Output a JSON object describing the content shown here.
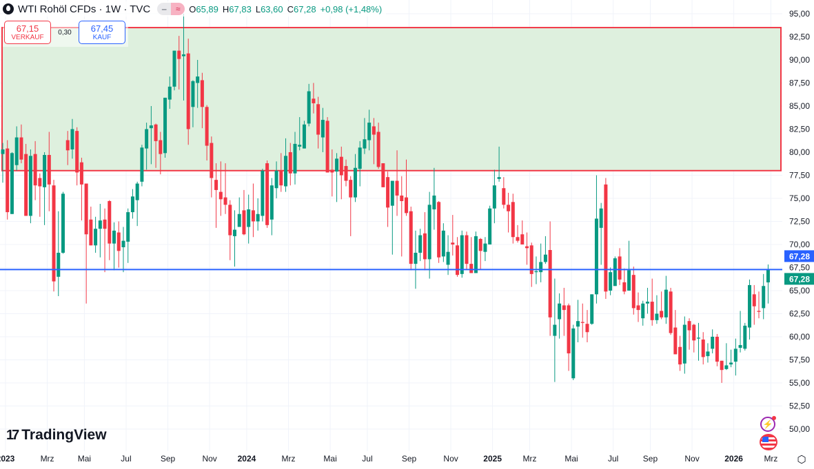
{
  "header": {
    "symbol_title": "WTI Rohöl CFDs · 1W · TVC",
    "icon": "oil-drop-icon",
    "btn_a": "‒",
    "btn_b": "≈",
    "o_label": "O",
    "o_value": "65,89",
    "h_label": "H",
    "h_value": "67,83",
    "l_label": "L",
    "l_value": "63,60",
    "c_label": "C",
    "c_value": "67,28",
    "change": "+0,98 (+1,48%)"
  },
  "trade": {
    "sell_price": "67,15",
    "sell_label": "VERKAUF",
    "spread": "0,30",
    "buy_price": "67,45",
    "buy_label": "KAUF"
  },
  "branding": {
    "logo_mark": "17",
    "logo_text": "TradingView"
  },
  "colors": {
    "up": "#089981",
    "down": "#f23645",
    "line": "#2962ff",
    "zone_fill": "#dcefdc",
    "zone_border": "#f23645"
  },
  "chart_data": {
    "type": "candlestick",
    "title": "WTI Rohöl CFDs · 1W · TVC",
    "ylim": [
      47.61,
      96.49
    ],
    "y_ticks": [
      "95,00",
      "92,50",
      "90,00",
      "87,50",
      "85,00",
      "82,50",
      "80,00",
      "77,50",
      "75,00",
      "72,50",
      "70,00",
      "67,50",
      "65,00",
      "62,50",
      "60,00",
      "57,50",
      "55,00",
      "52,50",
      "50,00"
    ],
    "y_tick_values": [
      95,
      92.5,
      90,
      87.5,
      85,
      82.5,
      80,
      77.5,
      75,
      72.5,
      70,
      67.5,
      65,
      62.5,
      60,
      57.5,
      55,
      52.5,
      50
    ],
    "x_ticks": [
      {
        "label": "2023",
        "index": 1,
        "bold": true
      },
      {
        "label": "Mrz",
        "index": 10
      },
      {
        "label": "Mai",
        "index": 18
      },
      {
        "label": "Jul",
        "index": 27
      },
      {
        "label": "Sep",
        "index": 36
      },
      {
        "label": "Nov",
        "index": 45
      },
      {
        "label": "2024",
        "index": 53,
        "bold": true
      },
      {
        "label": "Mrz",
        "index": 62
      },
      {
        "label": "Mai",
        "index": 71
      },
      {
        "label": "Jul",
        "index": 79
      },
      {
        "label": "Sep",
        "index": 88
      },
      {
        "label": "Nov",
        "index": 97
      },
      {
        "label": "2025",
        "index": 106,
        "bold": true
      },
      {
        "label": "Mrz",
        "index": 114
      },
      {
        "label": "Mai",
        "index": 123
      },
      {
        "label": "Jul",
        "index": 132
      },
      {
        "label": "Sep",
        "index": 140
      },
      {
        "label": "Nov",
        "index": 149
      },
      {
        "label": "2026",
        "index": 158,
        "bold": true
      },
      {
        "label": "Mrz",
        "index": 166
      }
    ],
    "zone": {
      "top": 93.5,
      "bottom": 78.0
    },
    "price_line": {
      "value": 67.28,
      "label_blue": "67,28",
      "label_green": "67,28"
    },
    "ohlc": [
      [
        79.8,
        81.0,
        76.7,
        80.3
      ],
      [
        80.4,
        81.3,
        72.7,
        73.5
      ],
      [
        73.3,
        80.0,
        73.3,
        79.9
      ],
      [
        78.6,
        82.8,
        78.0,
        81.6
      ],
      [
        81.6,
        83.0,
        78.8,
        79.2
      ],
      [
        79.8,
        80.9,
        73.1,
        73.1
      ],
      [
        73.1,
        80.3,
        72.3,
        79.6
      ],
      [
        79.8,
        81.2,
        74.8,
        76.4
      ],
      [
        77.2,
        77.7,
        73.0,
        76.3
      ],
      [
        76.2,
        80.0,
        72.1,
        79.7
      ],
      [
        79.7,
        82.2,
        73.6,
        76.5
      ],
      [
        76.4,
        77.0,
        64.9,
        66.0
      ],
      [
        66.5,
        73.6,
        64.4,
        69.1
      ],
      [
        69.1,
        75.7,
        69.0,
        75.5
      ],
      [
        81.3,
        82.3,
        78.6,
        80.2
      ],
      [
        80.3,
        83.6,
        79.3,
        82.5
      ],
      [
        82.3,
        82.7,
        76.4,
        77.8
      ],
      [
        78.9,
        79.4,
        72.6,
        76.5
      ],
      [
        76.6,
        76.6,
        63.6,
        71.1
      ],
      [
        72.7,
        74.1,
        69.9,
        69.9
      ],
      [
        69.9,
        73.0,
        69.1,
        71.7
      ],
      [
        71.7,
        74.4,
        68.6,
        72.6
      ],
      [
        72.7,
        73.9,
        67.0,
        71.7
      ],
      [
        74.7,
        74.8,
        68.3,
        70.1
      ],
      [
        70.1,
        72.4,
        67.2,
        71.5
      ],
      [
        71.3,
        72.5,
        67.5,
        69.3
      ],
      [
        69.7,
        71.9,
        67.0,
        70.4
      ],
      [
        70.3,
        73.9,
        68.0,
        73.5
      ],
      [
        73.5,
        76.0,
        72.8,
        75.2
      ],
      [
        74.8,
        76.8,
        72.0,
        76.6
      ],
      [
        76.8,
        80.8,
        76.3,
        80.5
      ],
      [
        80.4,
        83.2,
        78.1,
        82.5
      ],
      [
        82.6,
        85.0,
        78.7,
        82.9
      ],
      [
        83.0,
        83.1,
        78.3,
        81.2
      ],
      [
        81.3,
        82.2,
        77.6,
        79.8
      ],
      [
        79.9,
        85.9,
        79.4,
        85.9
      ],
      [
        85.7,
        88.2,
        84.7,
        87.1
      ],
      [
        87.1,
        91.0,
        86.7,
        91.0
      ],
      [
        91.0,
        92.6,
        86.8,
        90.1
      ],
      [
        90.4,
        95.0,
        85.6,
        90.6
      ],
      [
        90.7,
        92.3,
        80.8,
        82.5
      ],
      [
        84.9,
        87.8,
        82.7,
        87.7
      ],
      [
        87.5,
        90.0,
        84.8,
        88.2
      ],
      [
        87.8,
        88.6,
        82.6,
        84.9
      ],
      [
        84.9,
        85.1,
        79.1,
        80.7
      ],
      [
        81.0,
        81.7,
        75.1,
        77.2
      ],
      [
        77.0,
        78.8,
        71.8,
        75.9
      ],
      [
        75.7,
        79.0,
        73.1,
        74.9
      ],
      [
        75.1,
        78.8,
        73.3,
        74.3
      ],
      [
        74.3,
        74.8,
        68.3,
        71.0
      ],
      [
        70.9,
        73.7,
        67.6,
        71.6
      ],
      [
        71.9,
        75.1,
        71.9,
        73.3
      ],
      [
        73.7,
        75.9,
        71.0,
        71.1
      ],
      [
        71.9,
        75.4,
        70.1,
        73.8
      ],
      [
        73.7,
        76.6,
        70.8,
        72.5
      ],
      [
        72.5,
        75.0,
        71.5,
        73.3
      ],
      [
        73.1,
        78.2,
        72.5,
        78.0
      ],
      [
        78.8,
        79.1,
        71.8,
        72.1
      ],
      [
        72.7,
        77.2,
        71.0,
        76.4
      ],
      [
        76.1,
        79.0,
        75.0,
        78.0
      ],
      [
        78.0,
        79.9,
        75.7,
        76.4
      ],
      [
        76.3,
        81.5,
        75.7,
        79.6
      ],
      [
        80.0,
        81.0,
        76.4,
        77.7
      ],
      [
        77.7,
        82.2,
        76.5,
        80.9
      ],
      [
        80.6,
        83.8,
        80.2,
        80.8
      ],
      [
        80.4,
        83.4,
        80.4,
        83.0
      ],
      [
        83.1,
        87.4,
        82.8,
        86.6
      ],
      [
        85.8,
        87.5,
        84.2,
        85.3
      ],
      [
        85.2,
        86.0,
        80.4,
        81.9
      ],
      [
        81.6,
        84.8,
        80.0,
        83.5
      ],
      [
        83.4,
        83.8,
        77.8,
        77.8
      ],
      [
        78.1,
        80.3,
        75.2,
        77.8
      ],
      [
        77.9,
        79.9,
        74.6,
        79.3
      ],
      [
        79.5,
        80.6,
        74.9,
        77.5
      ],
      [
        78.5,
        79.2,
        76.3,
        76.9
      ],
      [
        77.0,
        77.4,
        70.9,
        75.1
      ],
      [
        75.1,
        79.8,
        74.6,
        78.3
      ],
      [
        78.2,
        81.2,
        76.3,
        80.5
      ],
      [
        80.4,
        83.7,
        79.8,
        81.4
      ],
      [
        81.3,
        84.6,
        80.2,
        83.2
      ],
      [
        82.8,
        83.7,
        78.7,
        81.9
      ],
      [
        82.2,
        83.2,
        78.2,
        78.4
      ],
      [
        78.8,
        78.8,
        76.2,
        76.2
      ],
      [
        77.3,
        77.9,
        71.9,
        74.0
      ],
      [
        74.2,
        76.9,
        68.9,
        76.9
      ],
      [
        76.9,
        80.2,
        73.1,
        75.3
      ],
      [
        75.3,
        77.4,
        68.7,
        74.7
      ],
      [
        75.1,
        79.2,
        73.1,
        73.4
      ],
      [
        73.6,
        74.1,
        67.2,
        67.9
      ],
      [
        67.9,
        71.5,
        65.2,
        69.1
      ],
      [
        69.1,
        71.7,
        68.2,
        71.0
      ],
      [
        71.2,
        73.5,
        67.2,
        68.4
      ],
      [
        68.4,
        75.7,
        66.3,
        74.3
      ],
      [
        73.8,
        78.3,
        71.6,
        75.3
      ],
      [
        74.6,
        74.7,
        68.0,
        68.6
      ],
      [
        68.7,
        72.3,
        68.1,
        71.5
      ],
      [
        67.8,
        71.0,
        66.7,
        69.2
      ],
      [
        70.2,
        73.2,
        68.8,
        70.0
      ],
      [
        69.9,
        70.8,
        66.5,
        66.7
      ],
      [
        66.8,
        71.5,
        66.4,
        71.0
      ],
      [
        71.0,
        71.4,
        67.3,
        67.9
      ],
      [
        67.9,
        70.8,
        66.9,
        66.9
      ],
      [
        66.9,
        71.4,
        66.9,
        70.9
      ],
      [
        70.6,
        70.7,
        67.3,
        69.3
      ],
      [
        69.2,
        70.8,
        68.2,
        70.1
      ],
      [
        70.0,
        74.2,
        70.0,
        73.9
      ],
      [
        73.9,
        78.1,
        72.3,
        76.4
      ],
      [
        77.1,
        80.6,
        76.8,
        77.3
      ],
      [
        76.1,
        77.3,
        73.9,
        74.3
      ],
      [
        74.3,
        75.6,
        71.3,
        73.6
      ],
      [
        74.6,
        75.5,
        70.1,
        70.8
      ],
      [
        70.8,
        72.1,
        70.2,
        70.4
      ],
      [
        71.1,
        72.6,
        70.0,
        70.0
      ],
      [
        69.8,
        71.3,
        67.8,
        69.6
      ],
      [
        69.9,
        70.2,
        65.4,
        66.8
      ],
      [
        67.0,
        68.7,
        65.7,
        67.1
      ],
      [
        67.0,
        70.1,
        65.9,
        68.1
      ],
      [
        68.1,
        70.9,
        67.9,
        68.9
      ],
      [
        69.4,
        72.5,
        60.1,
        62.1
      ],
      [
        60.1,
        66.3,
        55.1,
        61.3
      ],
      [
        61.9,
        64.7,
        59.8,
        63.6
      ],
      [
        63.4,
        65.3,
        60.1,
        62.9
      ],
      [
        63.4,
        63.6,
        56.3,
        58.2
      ],
      [
        55.5,
        61.3,
        55.3,
        60.9
      ],
      [
        61.1,
        64.0,
        59.4,
        61.7
      ],
      [
        61.6,
        63.6,
        59.9,
        61.5
      ],
      [
        61.4,
        62.9,
        59.4,
        60.5
      ],
      [
        61.4,
        64.6,
        61.3,
        64.6
      ],
      [
        64.6,
        77.5,
        63.6,
        72.8
      ],
      [
        71.8,
        74.5,
        67.8,
        73.9
      ],
      [
        76.5,
        77.2,
        64.1,
        64.9
      ],
      [
        65.0,
        67.5,
        64.5,
        67.0
      ],
      [
        65.5,
        68.7,
        65.5,
        68.5
      ],
      [
        68.7,
        69.6,
        65.6,
        66.2
      ],
      [
        65.9,
        67.4,
        64.6,
        64.9
      ],
      [
        65.0,
        70.4,
        65.0,
        67.2
      ],
      [
        66.7,
        67.6,
        62.4,
        63.1
      ],
      [
        63.4,
        64.8,
        61.6,
        62.9
      ],
      [
        62.0,
        63.9,
        61.2,
        63.6
      ],
      [
        63.6,
        65.3,
        62.5,
        63.8
      ],
      [
        63.8,
        66.3,
        61.2,
        61.8
      ],
      [
        61.8,
        64.5,
        61.4,
        62.5
      ],
      [
        62.8,
        64.9,
        61.9,
        62.1
      ],
      [
        62.1,
        66.6,
        61.4,
        65.1
      ],
      [
        64.9,
        65.3,
        60.2,
        60.4
      ],
      [
        61.0,
        62.9,
        58.1,
        58.1
      ],
      [
        58.9,
        60.1,
        56.3,
        57.0
      ],
      [
        57.1,
        62.2,
        56.0,
        61.3
      ],
      [
        61.7,
        62.0,
        58.6,
        60.7
      ],
      [
        61.3,
        61.4,
        58.3,
        59.6
      ],
      [
        59.8,
        61.5,
        57.4,
        59.9
      ],
      [
        59.7,
        60.5,
        57.0,
        57.8
      ],
      [
        57.9,
        59.3,
        57.2,
        58.4
      ],
      [
        58.7,
        60.8,
        58.2,
        60.0
      ],
      [
        60.0,
        60.3,
        56.8,
        57.3
      ],
      [
        57.4,
        57.4,
        55.0,
        56.4
      ],
      [
        56.5,
        59.3,
        56.4,
        56.9
      ],
      [
        57.0,
        58.6,
        56.7,
        57.2
      ],
      [
        57.3,
        59.8,
        55.8,
        58.7
      ],
      [
        58.8,
        62.8,
        58.3,
        59.1
      ],
      [
        58.7,
        61.5,
        58.5,
        61.2
      ],
      [
        61.0,
        66.2,
        59.7,
        65.6
      ],
      [
        64.6,
        65.6,
        61.3,
        63.3
      ],
      [
        62.8,
        64.9,
        62.0,
        62.7
      ],
      [
        63.1,
        66.8,
        61.9,
        65.5
      ],
      [
        65.89,
        67.83,
        63.6,
        67.28
      ]
    ]
  }
}
